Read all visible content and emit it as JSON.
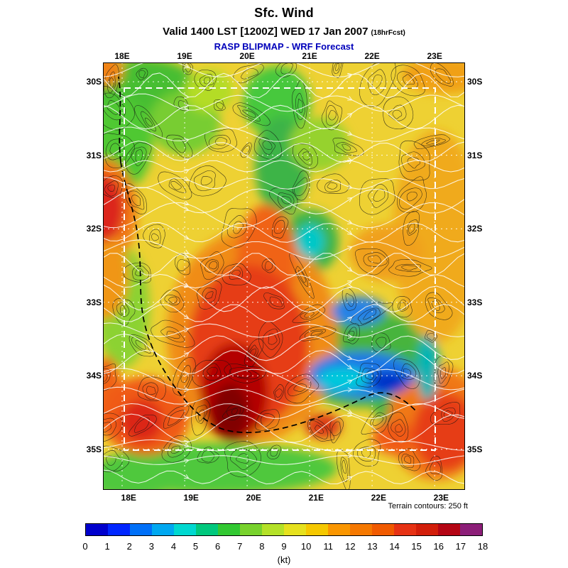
{
  "header": {
    "title": "Sfc. Wind",
    "valid_line": "Valid 1400 LST [1200Z] WED 17 Jan 2007",
    "fcst_note": "(18hrFcst)",
    "model_line": "RASP BLIPMAP - WRF Forecast",
    "model_color": "#0000bb"
  },
  "map": {
    "x_ticks": [
      "18E",
      "19E",
      "20E",
      "21E",
      "22E",
      "23E"
    ],
    "y_ticks": [
      "30S",
      "31S",
      "32S",
      "33S",
      "34S",
      "35S"
    ],
    "footnote": "Terrain contours: 250 ft"
  },
  "colorbar": {
    "tick_labels": [
      "0",
      "1",
      "2",
      "3",
      "4",
      "5",
      "6",
      "7",
      "8",
      "9",
      "10",
      "11",
      "12",
      "13",
      "14",
      "15",
      "16",
      "17",
      "18"
    ],
    "unit": "(kt)",
    "colors": [
      "#0000cd",
      "#0026ff",
      "#0070f8",
      "#00a8f0",
      "#00d8d0",
      "#00c87d",
      "#32c832",
      "#78d22d",
      "#b4e128",
      "#e6e11e",
      "#f5c800",
      "#fa9600",
      "#f57800",
      "#f05a00",
      "#e63214",
      "#d21e0a",
      "#b40514",
      "#8c1e78"
    ]
  }
}
